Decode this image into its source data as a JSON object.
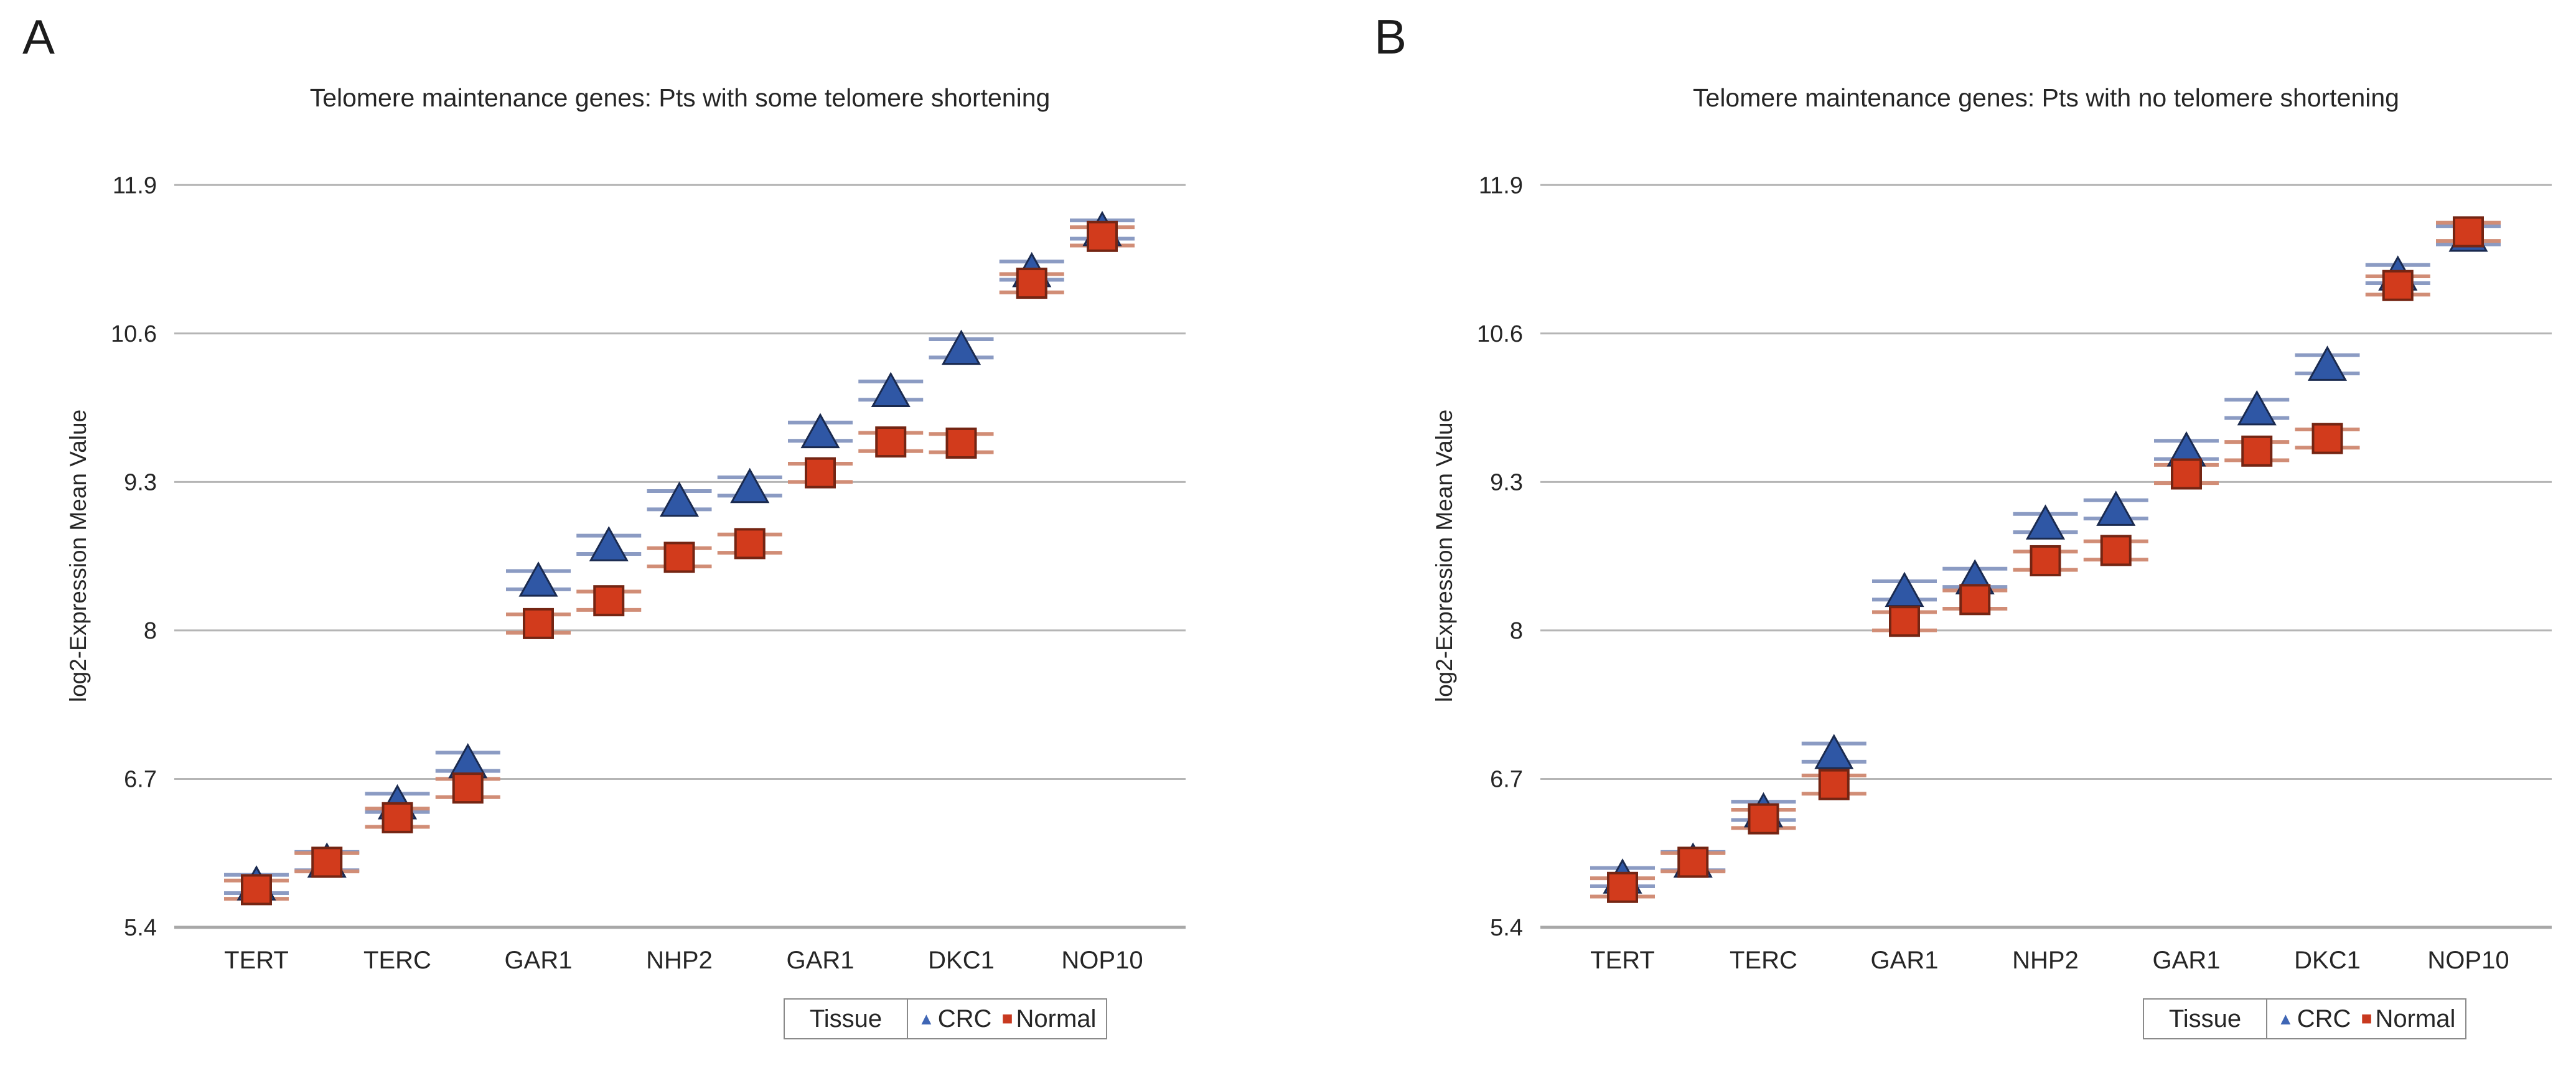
{
  "figure": {
    "background": "#ffffff"
  },
  "colors": {
    "crc_fill": "#2f57a5",
    "crc_edge": "#1a2a4f",
    "crc_cap": "#8b9bc3",
    "normal_fill": "#d23b1c",
    "normal_edge": "#742513",
    "normal_cap": "#d18d76",
    "gridline": "#b5b5b5",
    "axis_line": "#a8a8a8",
    "text": "#262626",
    "legend_border": "#8a8a8a"
  },
  "panels": [
    {
      "letter": "A",
      "title": "Telomere maintenance genes: Pts with some telomere shortening",
      "legend": {
        "title": "Tissue",
        "entries": [
          {
            "label": "CRC",
            "glyph": "▲",
            "marker": "triangle",
            "color": "#3f66b5"
          },
          {
            "label": "Normal",
            "glyph": "■",
            "marker": "square",
            "color": "#c8391f"
          }
        ]
      },
      "chart_data": {
        "type": "scatter",
        "title": "Telomere maintenance genes: Pts with some telomere shortening",
        "xlabel": "",
        "ylabel": "log2-Expression Mean Value",
        "ylim": [
          5.4,
          12.2
        ],
        "yticks": [
          11.9,
          10.6,
          9.3,
          8,
          6.7,
          5.4
        ],
        "ytick_labels": [
          "11.9",
          "10.6",
          "9.3",
          "8",
          "6.7",
          "5.4"
        ],
        "grid": "horizontal",
        "legend_position": "bottom-right",
        "error_bar_se": 0.08,
        "x_probe_labels": [
          "TERT",
          "",
          "TERC",
          "",
          "GAR1",
          "",
          "NHP2",
          "",
          "GAR1",
          "",
          "DKC1",
          "",
          "NOP10"
        ],
        "series": [
          {
            "name": "CRC",
            "marker": "triangle",
            "values": [
              5.78,
              5.98,
              6.49,
              6.85,
              8.44,
              8.75,
              9.14,
              9.26,
              9.74,
              10.1,
              10.47,
              11.15,
              11.51
            ]
          },
          {
            "name": "Normal",
            "marker": "square",
            "values": [
              5.73,
              5.97,
              6.36,
              6.62,
              8.06,
              8.26,
              8.64,
              8.76,
              9.38,
              9.65,
              9.64,
              11.04,
              11.45
            ]
          }
        ]
      }
    },
    {
      "letter": "B",
      "title": "Telomere maintenance genes: Pts with no telomere shortening",
      "legend": {
        "title": "Tissue",
        "entries": [
          {
            "label": "CRC",
            "glyph": "▲",
            "marker": "triangle",
            "color": "#3f66b5"
          },
          {
            "label": "Normal",
            "glyph": "■",
            "marker": "square",
            "color": "#c8391f"
          }
        ]
      },
      "chart_data": {
        "type": "scatter",
        "title": "Telomere maintenance genes: Pts with no telomere shortening",
        "xlabel": "",
        "ylabel": "log2-Expression Mean Value",
        "ylim": [
          5.4,
          12.2
        ],
        "yticks": [
          11.9,
          10.6,
          9.3,
          8,
          6.7,
          5.4
        ],
        "ytick_labels": [
          "11.9",
          "10.6",
          "9.3",
          "8",
          "6.7",
          "5.4"
        ],
        "grid": "horizontal",
        "legend_position": "bottom-right",
        "error_bar_se": 0.08,
        "x_probe_labels": [
          "TERT",
          "",
          "TERC",
          "",
          "GAR1",
          "",
          "NHP2",
          "",
          "GAR1",
          "",
          "DKC1",
          "",
          "NOP10"
        ],
        "series": [
          {
            "name": "CRC",
            "marker": "triangle",
            "values": [
              5.84,
              5.98,
              6.42,
              6.93,
              8.35,
              8.46,
              8.94,
              9.06,
              9.58,
              9.94,
              10.33,
              11.12,
              11.46
            ]
          },
          {
            "name": "Normal",
            "marker": "square",
            "values": [
              5.75,
              5.97,
              6.35,
              6.65,
              8.08,
              8.27,
              8.61,
              8.7,
              9.37,
              9.57,
              9.68,
              11.02,
              11.49
            ]
          }
        ]
      }
    }
  ]
}
